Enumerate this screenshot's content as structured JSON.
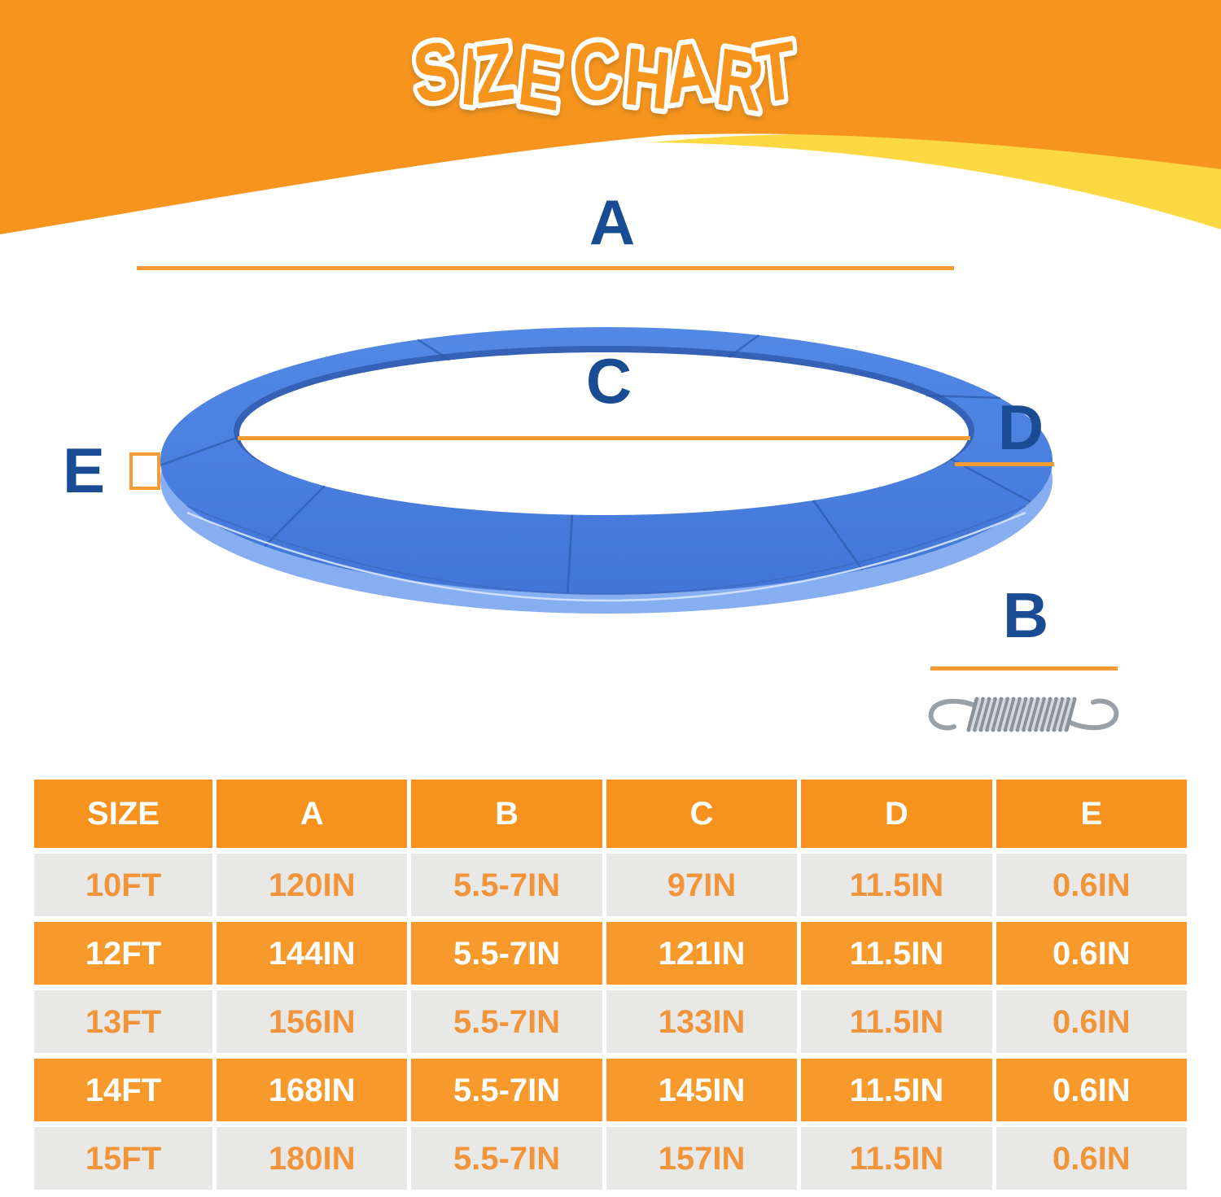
{
  "title": "SIZE CHART",
  "diagram": {
    "labels": {
      "a": "A",
      "b": "B",
      "c": "C",
      "d": "D",
      "e": "E"
    }
  },
  "table": {
    "columns": [
      "SIZE",
      "A",
      "B",
      "C",
      "D",
      "E"
    ],
    "rows": [
      [
        "10FT",
        "120IN",
        "5.5-7IN",
        "97IN",
        "11.5IN",
        "0.6IN"
      ],
      [
        "12FT",
        "144IN",
        "5.5-7IN",
        "121IN",
        "11.5IN",
        "0.6IN"
      ],
      [
        "13FT",
        "156IN",
        "5.5-7IN",
        "133IN",
        "11.5IN",
        "0.6IN"
      ],
      [
        "14FT",
        "168IN",
        "5.5-7IN",
        "145IN",
        "11.5IN",
        "0.6IN"
      ],
      [
        "15FT",
        "180IN",
        "5.5-7IN",
        "157IN",
        "11.5IN",
        "0.6IN"
      ]
    ]
  },
  "colors": {
    "banner_orange": "#F7941E",
    "banner_yellow": "#FCD943",
    "measure_line_orange": "#F59B33",
    "label_navy": "#1A4C94",
    "ring_blue": "#4A7EDD",
    "ring_inner_shadow_blue": "#3561B6",
    "ring_side_light_blue": "#87AEF0",
    "table_header_bg": "#F7921E",
    "table_row_orange_bg": "#F89A2B",
    "table_row_gray_bg": "#E8E8E7",
    "table_text_orange": "#F2953A",
    "spring_gray": "#8A9199"
  }
}
